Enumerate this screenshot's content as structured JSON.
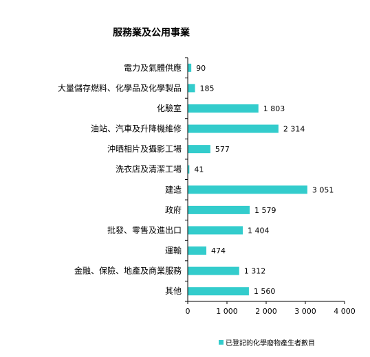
{
  "chart_data": {
    "type": "bar",
    "orientation": "horizontal",
    "title": "服務業及公用事業",
    "categories": [
      "電力及氣體供應",
      "大量儲存燃料、化學品及化學製品",
      "化驗室",
      "油站、汽車及升降機維修",
      "沖晒相片及攝影工場",
      "洗衣店及清潔工場",
      "建造",
      "政府",
      "批發、零售及進出口",
      "運輸",
      "金融、保險、地產及商業服務",
      "其他"
    ],
    "series": [
      {
        "name": "已登記的化學廢物產生者數目",
        "values": [
          90,
          185,
          1803,
          2314,
          577,
          41,
          3051,
          1579,
          1404,
          474,
          1312,
          1560
        ],
        "value_labels": [
          "90",
          "185",
          "1 803",
          "2 314",
          "577",
          "41",
          "3 051",
          "1 579",
          "1 404",
          "474",
          "1 312",
          "1 560"
        ]
      }
    ],
    "xlim": [
      0,
      4000
    ],
    "xticks": [
      0,
      1000,
      2000,
      3000,
      4000
    ],
    "xtick_labels": [
      "0",
      "1 000",
      "2 000",
      "3 000",
      "4 000"
    ],
    "xlabel": "",
    "ylabel": "",
    "grid": false,
    "legend_position": "bottom-right",
    "colors": {
      "bar": "#33CCCC",
      "axis": "#000000"
    }
  }
}
